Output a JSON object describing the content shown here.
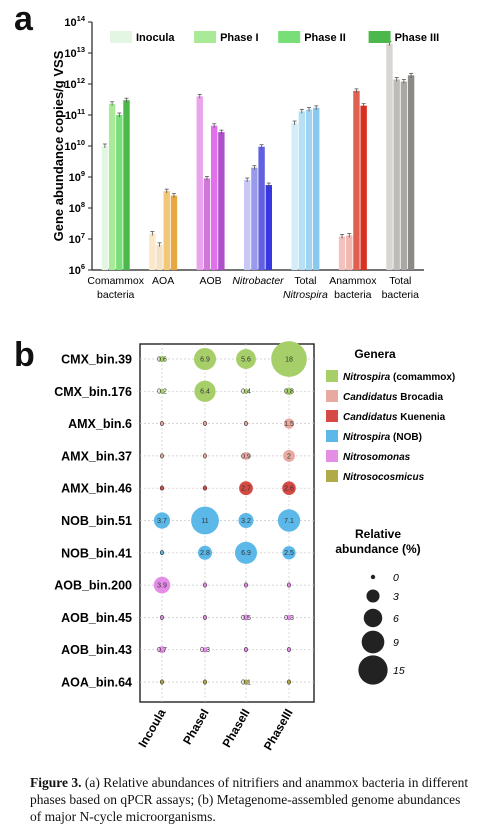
{
  "panel_a": {
    "letter": "a",
    "ylabel": "Gene abundance copies/g VSS",
    "legend": [
      {
        "name": "Inocula",
        "color": "#e3f6e3"
      },
      {
        "name": "Phase I",
        "color": "#a8ea98"
      },
      {
        "name": "Phase II",
        "color": "#78df78"
      },
      {
        "name": "Phase III",
        "color": "#4cb84c"
      }
    ],
    "y_ticks": [
      {
        "base": "10",
        "exp": "6"
      },
      {
        "base": "10",
        "exp": "7"
      },
      {
        "base": "10",
        "exp": "8"
      },
      {
        "base": "10",
        "exp": "9"
      },
      {
        "base": "10",
        "exp": "10"
      },
      {
        "base": "10",
        "exp": "11"
      },
      {
        "base": "10",
        "exp": "12"
      },
      {
        "base": "10",
        "exp": "13"
      },
      {
        "base": "10",
        "exp": "14"
      }
    ],
    "x_labels": [
      {
        "lines": [
          "Comammox",
          "bacteria"
        ],
        "italic": false
      },
      {
        "lines": [
          "AOA"
        ],
        "italic": false
      },
      {
        "lines": [
          "AOB"
        ],
        "italic": false
      },
      {
        "lines": [
          "Nitrobacter"
        ],
        "italic": true
      },
      {
        "lines": [
          "Total",
          "Nitrospira"
        ],
        "italic": true
      },
      {
        "lines": [
          "Anammox",
          "bacteria"
        ],
        "italic": false
      },
      {
        "lines": [
          "Total",
          "bacteria"
        ],
        "italic": false
      }
    ]
  },
  "chart_data": [
    {
      "type": "bar",
      "ylabel": "Gene abundance copies/g VSS",
      "yscale": "log",
      "ylim": [
        1000000,
        100000000000000
      ],
      "categories": [
        "Comammox bacteria",
        "AOA",
        "AOB",
        "Nitrobacter",
        "Total Nitrospira",
        "Anammox bacteria",
        "Total bacteria"
      ],
      "series": [
        {
          "name": "Inocula",
          "values": [
            10000000000,
            15000000,
            400000000000,
            800000000,
            55000000000,
            12000000,
            20000000000000
          ]
        },
        {
          "name": "Phase I",
          "values": [
            230000000000,
            6500000,
            900000000,
            2000000000,
            130000000000,
            13000000,
            1400000000000
          ]
        },
        {
          "name": "Phase II",
          "values": [
            100000000000,
            350000000,
            45000000000,
            9500000000,
            150000000000,
            600000000000,
            1200000000000
          ]
        },
        {
          "name": "Phase III",
          "values": [
            300000000000,
            250000000,
            28000000000,
            550000000,
            170000000000,
            200000000000,
            1900000000000
          ]
        }
      ],
      "bar_colors": [
        [
          "#e3f6e3",
          "#a8ea98",
          "#78df78",
          "#4cb84c"
        ],
        [
          "#fbe8c8",
          "#f2e2c8",
          "#f0c878",
          "#e8a840"
        ],
        [
          "#e9a4ec",
          "#d078d8",
          "#e070ec",
          "#b050c8"
        ],
        [
          "#c8c8f4",
          "#9a9aec",
          "#6060e0",
          "#3838e0"
        ],
        [
          "#d4ecf8",
          "#b8e0f4",
          "#a2d4f2",
          "#88c8ee"
        ],
        [
          "#f4c2bc",
          "#f0b8b0",
          "#e06050",
          "#d83020"
        ],
        [
          "#d8d6d2",
          "#bebcb8",
          "#aaa8a4",
          "#8c8a86"
        ]
      ]
    },
    {
      "type": "bubble",
      "genomes": [
        "CMX_bin.39",
        "CMX_bin.176",
        "AMX_bin.6",
        "AMX_bin.37",
        "AMX_bin.46",
        "NOB_bin.51",
        "NOB_bin.41",
        "AOB_bin.200",
        "AOB_bin.45",
        "AOB_bin.43",
        "AOA_bin.64"
      ],
      "phases": [
        "Inocula",
        "PhaseI",
        "PhaseII",
        "PhaseIII"
      ],
      "genera_colors": {
        "CMX": "#a6cf6a",
        "AMX6": "#e8a9a1",
        "AMX37": "#e8a9a1",
        "AMX46": "#d64a45",
        "NOB": "#5bb8e8",
        "AOB": "#e58ee8",
        "AOA": "#b0ab48"
      },
      "values": [
        [
          0.6,
          6.9,
          5.6,
          18
        ],
        [
          0.2,
          6.4,
          0.4,
          0.8
        ],
        [
          0,
          0,
          0,
          1.5
        ],
        [
          0,
          0,
          0.9,
          2
        ],
        [
          0,
          0,
          2.7,
          2.6
        ],
        [
          3.7,
          11,
          3.2,
          7.1
        ],
        [
          0,
          2.8,
          6.9,
          2.5
        ],
        [
          3.9,
          0,
          0,
          0
        ],
        [
          0,
          0,
          0.5,
          0.3
        ],
        [
          0.7,
          0.3,
          0,
          0
        ],
        [
          0,
          0,
          0.1,
          0
        ]
      ],
      "labels": [
        [
          "0.6",
          "6.9",
          "5.6",
          "18"
        ],
        [
          "0.2",
          "6.4",
          "0.4",
          "0.8"
        ],
        [
          "0",
          "0",
          "0",
          "1.5"
        ],
        [
          "0",
          "0",
          "0.9",
          "2"
        ],
        [
          "0",
          "0",
          "2.7",
          "2.6"
        ],
        [
          "3.7",
          "11",
          "3.2",
          "7.1"
        ],
        [
          "0",
          "2.8",
          "6.9",
          "2.5"
        ],
        [
          "3.9",
          "0",
          "0",
          "0"
        ],
        [
          "0",
          "0",
          "0.5",
          "0.3"
        ],
        [
          "0.7",
          "0.3",
          "0",
          "0"
        ],
        [
          "0",
          "0",
          "0.1",
          "0"
        ]
      ]
    }
  ],
  "panel_b": {
    "letter": "b",
    "x_labels": [
      "Incoula",
      "PhaseI",
      "PhaseII",
      "PhaseIII"
    ],
    "legend_title": "Genera",
    "genera": [
      {
        "pre": "Nitrospira",
        "post": " (comammox)",
        "pre_italic": true,
        "color": "#a6cf6a"
      },
      {
        "pre": "Candidatus",
        "post": " Brocadia",
        "pre_italic": true,
        "color": "#e8a9a1"
      },
      {
        "pre": "Candidatus",
        "post": " Kuenenia",
        "pre_italic": true,
        "color": "#d64a45"
      },
      {
        "pre": "Nitrospira",
        "post": " (NOB)",
        "pre_italic": true,
        "color": "#5bb8e8"
      },
      {
        "pre": "Nitrosomonas",
        "post": "",
        "pre_italic": true,
        "color": "#e58ee8"
      },
      {
        "pre": "Nitrosocosmicus",
        "post": "",
        "pre_italic": true,
        "color": "#b0ab48"
      }
    ],
    "size_title_1": "Relative",
    "size_title_2": "abundance (%)",
    "size_legend": [
      {
        "label": "0",
        "value": 0
      },
      {
        "label": "3",
        "value": 3
      },
      {
        "label": "6",
        "value": 6
      },
      {
        "label": "9",
        "value": 9
      },
      {
        "label": "15",
        "value": 15
      }
    ]
  },
  "caption": {
    "label": "Figure 3.",
    "text": " (a) Relative abundances of nitrifiers and anammox bacteria in different phases based on qPCR assays; (b) Metagenome-assembled genome abundances of major N-cycle microorganisms."
  }
}
